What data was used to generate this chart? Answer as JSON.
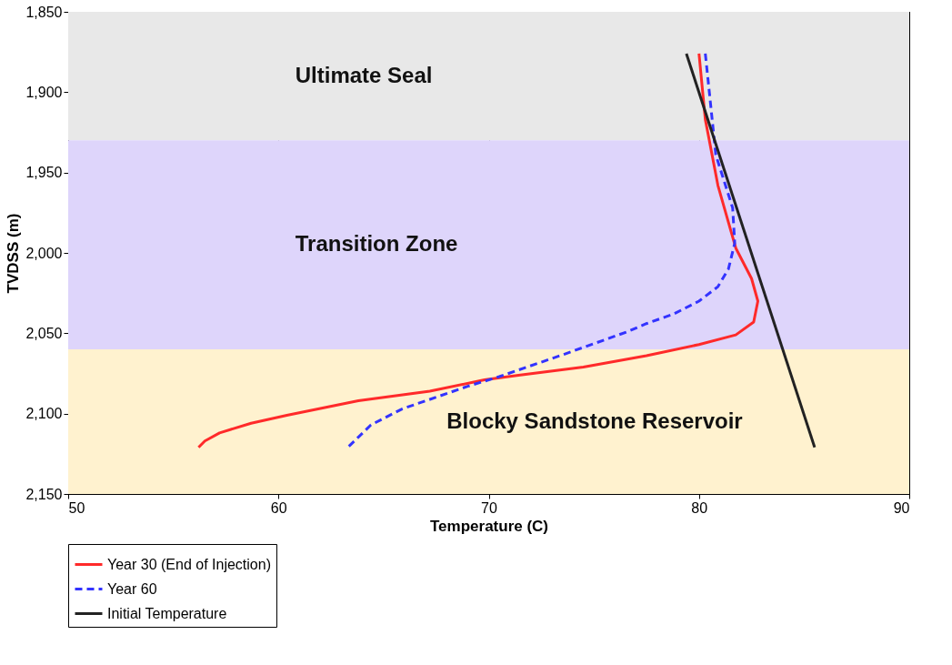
{
  "chart_data": {
    "type": "line",
    "xlabel": "Temperature (C)",
    "ylabel": "TVDSS (m)",
    "xlim": [
      50,
      90
    ],
    "xticks": [
      50,
      60,
      70,
      80,
      90
    ],
    "ylim": [
      2150,
      1850
    ],
    "yticks": [
      {
        "value": 1850,
        "label": "1,850"
      },
      {
        "value": 1900,
        "label": "1,900"
      },
      {
        "value": 1950,
        "label": "1,950"
      },
      {
        "value": 2000,
        "label": "2,000"
      },
      {
        "value": 2050,
        "label": "2,050"
      },
      {
        "value": 2100,
        "label": "2,100"
      },
      {
        "value": 2150,
        "label": "2,150"
      }
    ],
    "grid": true,
    "legend": "bottom",
    "bands": [
      {
        "axis": "y",
        "from": 1850,
        "to": 1930,
        "label": "Ultimate Seal",
        "color": "#e8e8e8"
      },
      {
        "axis": "y",
        "from": 1930,
        "to": 2060,
        "label": "Transition Zone",
        "color": "#ded5fb"
      },
      {
        "axis": "y",
        "from": 2060,
        "to": 2150,
        "label": "Blocky Sandstone Reservoir",
        "color": "#fff2cf"
      }
    ],
    "series": [
      {
        "name": "Year 30 (End of Injection)",
        "color": "#ff2a2a",
        "line_style": "solid",
        "x": [
          80.0,
          80.3,
          80.9,
          81.75,
          82.5,
          82.8,
          82.6,
          81.75,
          80.0,
          77.5,
          74.5,
          71.5,
          69.8,
          67.2,
          63.8,
          60.4,
          58.7,
          57.2,
          56.5,
          56.2
        ],
        "values": [
          1876,
          1917,
          1958,
          1997,
          2016,
          2030,
          2043,
          2051,
          2057,
          2064,
          2071,
          2076,
          2079,
          2086,
          2092,
          2101,
          2106,
          2112,
          2117,
          2121
        ]
      },
      {
        "name": "Year 60",
        "color": "#3333ff",
        "line_style": "dashed",
        "x": [
          80.3,
          80.5,
          80.8,
          81.6,
          81.7,
          81.4,
          80.9,
          80.0,
          78.8,
          77.5,
          76.6,
          73.6,
          70.5,
          69.0,
          65.9,
          64.4,
          63.3
        ],
        "values": [
          1876,
          1901,
          1939,
          1972,
          1994,
          2010,
          2021,
          2030,
          2038,
          2044,
          2049,
          2063,
          2077,
          2083,
          2097,
          2107,
          2121
        ]
      },
      {
        "name": "Initial Temperature",
        "color": "#222222",
        "line_style": "solid",
        "x": [
          79.4,
          85.5
        ],
        "values": [
          1876,
          2121
        ]
      }
    ]
  }
}
